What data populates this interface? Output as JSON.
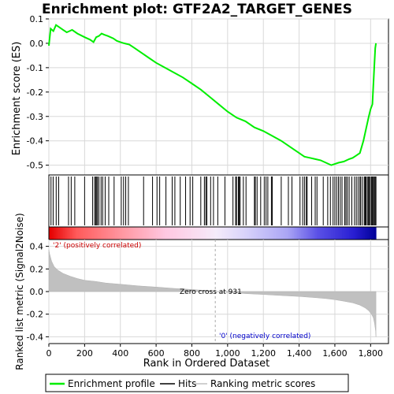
{
  "chart_data": [
    {
      "type": "line",
      "title": "Enrichment plot: GTF2A2_TARGET_GENES",
      "ylabel": "Enrichment score (ES)",
      "ylim": [
        -0.54,
        0.1
      ],
      "yticks": [
        0.1,
        0.0,
        -0.1,
        -0.2,
        -0.3,
        -0.4,
        -0.5
      ],
      "ytick_labels": [
        "0.1",
        "0.0",
        "-0.1",
        "-0.2",
        "-0.3",
        "-0.4",
        "-0.5"
      ],
      "xlim": [
        0,
        1900
      ],
      "grid": true,
      "series": [
        {
          "name": "Enrichment profile",
          "color": "#00ee00",
          "x": [
            0,
            10,
            25,
            40,
            60,
            80,
            100,
            115,
            130,
            160,
            200,
            230,
            250,
            265,
            280,
            295,
            310,
            330,
            360,
            380,
            400,
            420,
            450,
            480,
            520,
            560,
            600,
            650,
            700,
            750,
            800,
            850,
            900,
            950,
            1000,
            1050,
            1100,
            1150,
            1200,
            1250,
            1300,
            1350,
            1400,
            1430,
            1460,
            1490,
            1520,
            1550,
            1580,
            1600,
            1620,
            1650,
            1680,
            1700,
            1720,
            1740,
            1760,
            1775,
            1790,
            1800,
            1810,
            1820,
            1826,
            1830
          ],
          "y": [
            -0.01,
            0.06,
            0.05,
            0.075,
            0.065,
            0.055,
            0.045,
            0.05,
            0.055,
            0.04,
            0.025,
            0.015,
            0.005,
            0.025,
            0.03,
            0.04,
            0.035,
            0.03,
            0.02,
            0.01,
            0.005,
            0.0,
            -0.005,
            -0.02,
            -0.04,
            -0.06,
            -0.08,
            -0.1,
            -0.12,
            -0.14,
            -0.165,
            -0.19,
            -0.22,
            -0.25,
            -0.28,
            -0.305,
            -0.32,
            -0.345,
            -0.36,
            -0.38,
            -0.4,
            -0.425,
            -0.45,
            -0.465,
            -0.47,
            -0.475,
            -0.48,
            -0.49,
            -0.5,
            -0.495,
            -0.49,
            -0.485,
            -0.475,
            -0.47,
            -0.46,
            -0.45,
            -0.4,
            -0.35,
            -0.3,
            -0.27,
            -0.25,
            -0.1,
            -0.02,
            0.0
          ]
        }
      ]
    },
    {
      "type": "hits",
      "legend_label": "Hits",
      "color": "#000000",
      "xlim": [
        0,
        1900
      ],
      "positions": [
        12,
        24,
        41,
        55,
        110,
        125,
        145,
        200,
        245,
        256,
        262,
        268,
        272,
        280,
        292,
        301,
        315,
        335,
        365,
        405,
        418,
        430,
        445,
        530,
        580,
        605,
        620,
        655,
        690,
        705,
        735,
        765,
        790,
        805,
        850,
        870,
        878,
        884,
        905,
        921,
        945,
        985,
        1030,
        1045,
        1050,
        1060,
        1065,
        1070,
        1088,
        1103,
        1150,
        1155,
        1165,
        1185,
        1205,
        1215,
        1225,
        1245,
        1250,
        1300,
        1340,
        1360,
        1405,
        1420,
        1430,
        1440,
        1445,
        1470,
        1490,
        1500,
        1535,
        1560,
        1575,
        1590,
        1600,
        1610,
        1620,
        1630,
        1640,
        1655,
        1662,
        1670,
        1680,
        1695,
        1710,
        1720,
        1730,
        1740,
        1745,
        1755,
        1765,
        1770,
        1775,
        1782,
        1788,
        1793,
        1798,
        1805,
        1810,
        1815,
        1820,
        1825,
        1830
      ]
    },
    {
      "type": "area",
      "ylabel": "Ranked list metric (Signal2Noise)",
      "xlabel": "Rank in Ordered Dataset",
      "xlim": [
        0,
        1900
      ],
      "ylim": [
        -0.46,
        0.46
      ],
      "xticks": [
        0,
        200,
        400,
        600,
        800,
        1000,
        1200,
        1400,
        1600,
        1800
      ],
      "xtick_labels": [
        "0",
        "200",
        "400",
        "600",
        "800",
        "1,000",
        "1,200",
        "1,400",
        "1,600",
        "1,800"
      ],
      "yticks": [
        0.4,
        0.2,
        0.0,
        -0.2,
        -0.4
      ],
      "ytick_labels": [
        "0.4",
        "0.2",
        "0.0",
        "-0.2",
        "-0.4"
      ],
      "grid": true,
      "fill_color": "#c0c0c0",
      "series": [
        {
          "name": "Ranking metric scores",
          "x": [
            0,
            5,
            15,
            30,
            50,
            80,
            120,
            160,
            200,
            260,
            320,
            400,
            500,
            600,
            700,
            800,
            900,
            931,
            1000,
            1100,
            1200,
            1300,
            1400,
            1500,
            1550,
            1600,
            1650,
            1700,
            1740,
            1770,
            1790,
            1805,
            1815,
            1822,
            1828,
            1830
          ],
          "y": [
            0.37,
            0.33,
            0.27,
            0.22,
            0.19,
            0.16,
            0.135,
            0.115,
            0.1,
            0.09,
            0.075,
            0.065,
            0.05,
            0.04,
            0.028,
            0.018,
            0.006,
            0.0,
            -0.008,
            -0.018,
            -0.026,
            -0.035,
            -0.043,
            -0.055,
            -0.062,
            -0.072,
            -0.085,
            -0.1,
            -0.12,
            -0.145,
            -0.17,
            -0.2,
            -0.23,
            -0.28,
            -0.35,
            -0.4
          ]
        }
      ],
      "annotations": {
        "zero_cross": "Zero cross at 931",
        "zero_cross_x": 931,
        "positive": "'2' (positively correlated)",
        "negative": "'0' (negatively correlated)"
      }
    }
  ],
  "legend": {
    "items": [
      {
        "label": "Enrichment profile",
        "color": "#00ee00"
      },
      {
        "label": "Hits",
        "color": "#000000"
      },
      {
        "label": "Ranking metric scores",
        "color": "#c0c0c0"
      }
    ]
  }
}
